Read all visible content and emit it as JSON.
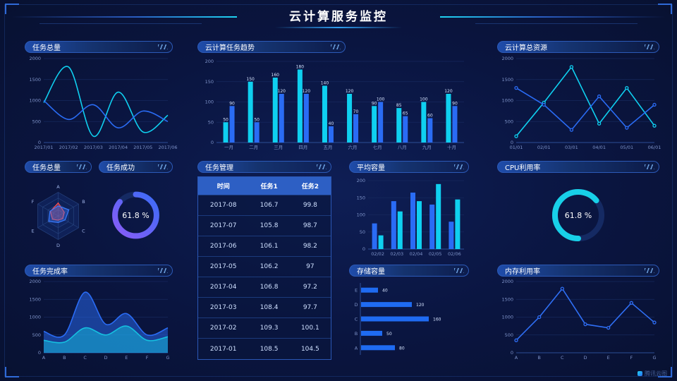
{
  "header": {
    "title": "云计算服务监控"
  },
  "watermark": "腾讯云图",
  "theme": {
    "bg": "#0a1540",
    "panel_border": "#2c5ab8",
    "axis_text": "#7e93c9",
    "cyan": "#0fd0f0",
    "blue": "#2a6cf5",
    "red": "#ff4d4d",
    "purple": "#8a5cf6"
  },
  "panels": {
    "task_total": {
      "title": "任务总量"
    },
    "task_trend": {
      "title": "云计算任务趋势"
    },
    "cloud_resource": {
      "title": "云计算总资源"
    },
    "task_total_radar": {
      "title": "任务总量"
    },
    "task_success": {
      "title": "任务成功"
    },
    "task_manage": {
      "title": "任务管理"
    },
    "avg_capacity": {
      "title": "平均容量"
    },
    "cpu_usage": {
      "title": "CPU利用率"
    },
    "task_completion": {
      "title": "任务完成率"
    },
    "storage": {
      "title": "存储容量"
    },
    "memory": {
      "title": "内存利用率"
    }
  },
  "chart_data": [
    {
      "el": "chart-task-total",
      "type": "line",
      "title": "任务总量",
      "smooth": true,
      "x": [
        "2017/01",
        "2017/02",
        "2017/03",
        "2017/04",
        "2017/05",
        "2017/06"
      ],
      "ylim": [
        0,
        2000
      ],
      "yticks": [
        0,
        500,
        1000,
        1500,
        2000
      ],
      "series": [
        {
          "name": "series1",
          "color": "#0fd0f0",
          "values": [
            950,
            1800,
            150,
            1200,
            250,
            650
          ]
        },
        {
          "name": "series2",
          "color": "#2a6cf5",
          "values": [
            1000,
            550,
            900,
            350,
            750,
            500
          ]
        }
      ]
    },
    {
      "el": "chart-task-trend",
      "type": "bar",
      "title": "云计算任务趋势",
      "labels": true,
      "x": [
        "一月",
        "二月",
        "三月",
        "四月",
        "五月",
        "六月",
        "七月",
        "八月",
        "九月",
        "十月"
      ],
      "ylim": [
        0,
        200
      ],
      "yticks": [
        0,
        50,
        100,
        150,
        200
      ],
      "series": [
        {
          "name": "seriesA",
          "color": "#0fd0f0",
          "values": [
            50,
            150,
            160,
            180,
            140,
            120,
            90,
            85,
            100,
            120
          ]
        },
        {
          "name": "seriesB",
          "color": "#2a6cf5",
          "values": [
            90,
            50,
            120,
            120,
            40,
            70,
            100,
            65,
            60,
            90
          ]
        }
      ]
    },
    {
      "el": "chart-resource",
      "type": "line",
      "title": "云计算总资源",
      "markers": true,
      "x": [
        "01/01",
        "02/01",
        "03/01",
        "04/01",
        "05/01",
        "06/01"
      ],
      "ylim": [
        0,
        2000
      ],
      "yticks": [
        0,
        500,
        1000,
        1500,
        2000
      ],
      "series": [
        {
          "name": "series1",
          "color": "#0fd0f0",
          "values": [
            150,
            950,
            1800,
            450,
            1300,
            400
          ]
        },
        {
          "name": "series2",
          "color": "#2a6cf5",
          "values": [
            1300,
            900,
            300,
            1100,
            350,
            900
          ]
        }
      ]
    },
    {
      "el": "chart-radar",
      "type": "radar",
      "title": "任务总量",
      "axes": [
        "A",
        "B",
        "C",
        "D",
        "E",
        "F"
      ],
      "max": 100,
      "series": [
        {
          "name": "red",
          "color": "#ff4d4d",
          "values": [
            55,
            30,
            22,
            18,
            28,
            38
          ]
        },
        {
          "name": "blue",
          "color": "#3a7bff",
          "values": [
            42,
            52,
            34,
            28,
            46,
            40
          ]
        }
      ]
    },
    {
      "el": "gauge-success",
      "type": "donut",
      "title": "任务成功",
      "value": 61.8,
      "label": "61.8 %",
      "ring_percent": 86,
      "rotate": -90,
      "colors": [
        "#8a5cf6",
        "#3b6cf6"
      ]
    },
    {
      "el": "table-task",
      "type": "table",
      "title": "任务管理",
      "columns": [
        "时间",
        "任务1",
        "任务2"
      ],
      "rows": [
        [
          "2017-08",
          "106.7",
          "99.8"
        ],
        [
          "2017-07",
          "105.8",
          "98.7"
        ],
        [
          "2017-06",
          "106.1",
          "98.2"
        ],
        [
          "2017-05",
          "106.2",
          "97"
        ],
        [
          "2017-04",
          "106.8",
          "97.2"
        ],
        [
          "2017-03",
          "108.4",
          "97.7"
        ],
        [
          "2017-02",
          "109.3",
          "100.1"
        ],
        [
          "2017-01",
          "108.5",
          "104.5"
        ]
      ]
    },
    {
      "el": "chart-capacity",
      "type": "bar",
      "title": "平均容量",
      "x": [
        "02/02",
        "02/03",
        "02/04",
        "02/05",
        "02/06"
      ],
      "ylim": [
        0,
        200
      ],
      "yticks": [
        0,
        50,
        100,
        150,
        200
      ],
      "series": [
        {
          "name": "seriesA",
          "color": "#2a6cf5",
          "values": [
            75,
            140,
            165,
            130,
            80
          ]
        },
        {
          "name": "seriesB",
          "color": "#0fd0f0",
          "values": [
            40,
            110,
            140,
            190,
            145
          ]
        }
      ]
    },
    {
      "el": "gauge-cpu",
      "type": "donut",
      "title": "CPU利用率",
      "value": 61.8,
      "label": "61.8 %",
      "ring_percent": 64,
      "rotate": 90,
      "colors": [
        "#18d0e8",
        "#18d0e8"
      ]
    },
    {
      "el": "chart-completion",
      "type": "area",
      "title": "任务完成率",
      "smooth": true,
      "x": [
        "A",
        "B",
        "C",
        "D",
        "E",
        "F",
        "G"
      ],
      "ylim": [
        0,
        2000
      ],
      "yticks": [
        0,
        500,
        1000,
        1500,
        2000
      ],
      "series": [
        {
          "name": "blueArea",
          "color": "#2a6cf5",
          "values": [
            600,
            500,
            1700,
            800,
            1100,
            500,
            700
          ]
        },
        {
          "name": "cyanArea",
          "color": "#15c0e0",
          "values": [
            350,
            300,
            700,
            500,
            750,
            350,
            450
          ]
        }
      ]
    },
    {
      "el": "chart-storage",
      "type": "hbar",
      "title": "存储容量",
      "categories": [
        "E",
        "D",
        "C",
        "B",
        "A"
      ],
      "values": [
        40,
        120,
        160,
        50,
        80
      ],
      "xmax": 200,
      "color": "#1f6bf2"
    },
    {
      "el": "chart-memory",
      "type": "line",
      "title": "内存利用率",
      "markers": true,
      "x": [
        "A",
        "B",
        "C",
        "D",
        "E",
        "F",
        "G"
      ],
      "ylim": [
        0,
        2000
      ],
      "yticks": [
        0,
        500,
        1000,
        1500,
        2000
      ],
      "series": [
        {
          "name": "series1",
          "color": "#2f6ff5",
          "values": [
            350,
            1000,
            1800,
            800,
            700,
            1400,
            850
          ]
        }
      ]
    }
  ]
}
